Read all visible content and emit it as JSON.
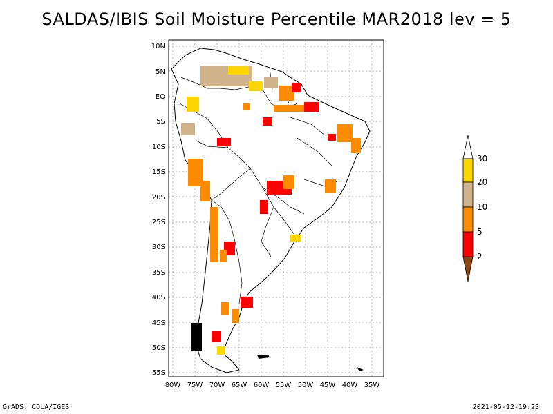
{
  "title": "SALDAS/IBIS Soil Moisture Percentile MAR2018 lev = 5",
  "footer": {
    "left": "GrADS: COLA/IGES",
    "right": "2021-05-12-19:23"
  },
  "map": {
    "lat_labels": [
      "10N",
      "5N",
      "EQ",
      "5S",
      "10S",
      "15S",
      "20S",
      "25S",
      "30S",
      "35S",
      "40S",
      "45S",
      "50S",
      "55S"
    ],
    "lon_labels": [
      "80W",
      "75W",
      "70W",
      "65W",
      "60W",
      "55W",
      "50W",
      "45W",
      "40W",
      "35W"
    ],
    "lat_range": [
      -56,
      11
    ],
    "lon_range": [
      -81,
      -33
    ],
    "grid_lines": true,
    "land_fill": "#ffffff",
    "coast_color": "#000000"
  },
  "legend": {
    "ticks": [
      "30",
      "20",
      "10",
      "5",
      "2"
    ],
    "colors": [
      "#ffffff",
      "#ffd500",
      "#d2b48c",
      "#ff8c00",
      "#ff0000",
      "#8b4513"
    ]
  }
}
